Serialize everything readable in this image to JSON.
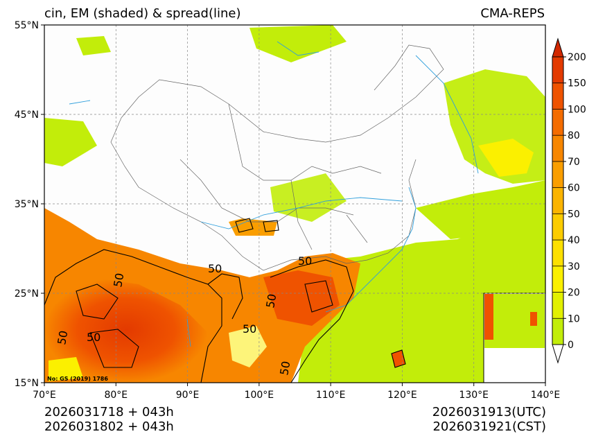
{
  "header": {
    "left_title": "cin, EM (shaded) & spread(line)",
    "right_title": "CMA-REPS"
  },
  "map": {
    "lon_range": [
      70,
      140
    ],
    "lat_range": [
      15,
      55
    ],
    "lon_ticks": [
      {
        "value": 70,
        "label": "70°E"
      },
      {
        "value": 80,
        "label": "80°E"
      },
      {
        "value": 90,
        "label": "90°E"
      },
      {
        "value": 100,
        "label": "100°E"
      },
      {
        "value": 110,
        "label": "110°E"
      },
      {
        "value": 120,
        "label": "120°E"
      },
      {
        "value": 130,
        "label": "130°E"
      },
      {
        "value": 140,
        "label": "140°E"
      }
    ],
    "lat_ticks": [
      {
        "value": 55,
        "label": "55°N"
      },
      {
        "value": 45,
        "label": "45°N"
      },
      {
        "value": 35,
        "label": "35°N"
      },
      {
        "value": 25,
        "label": "25°N"
      },
      {
        "value": 15,
        "label": "15°N"
      }
    ],
    "contour_labels": [
      "50",
      "50",
      "50",
      "50",
      "50",
      "50",
      "50",
      "50"
    ],
    "review_number": "No: GS (2019) 1786"
  },
  "colorbar": {
    "levels": [
      "0",
      "10",
      "20",
      "30",
      "40",
      "50",
      "60",
      "70",
      "80",
      "100",
      "150",
      "200"
    ],
    "colors": [
      "#c2ed0a",
      "#e2f000",
      "#fbf000",
      "#fde000",
      "#fccc00",
      "#fbb400",
      "#fa9e00",
      "#f78600",
      "#f46c00",
      "#ef5300",
      "#e33a00"
    ],
    "over_color": "#d22800",
    "under_color": "#ffffff"
  },
  "footer": {
    "init_utc": "2026031718  +  043h",
    "init_cst": "2026031802  +  043h",
    "valid_utc": "2026031913(UTC)",
    "valid_cst": "2026031921(CST)"
  }
}
